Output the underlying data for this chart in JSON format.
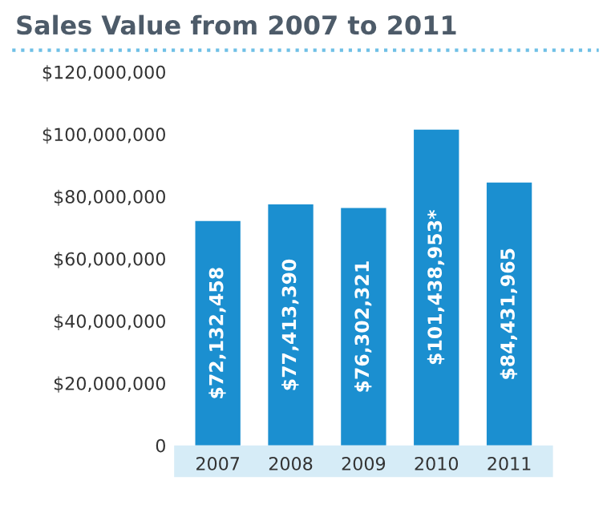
{
  "chart_data": {
    "type": "bar",
    "title": "Sales Value from 2007 to 2011",
    "categories": [
      "2007",
      "2008",
      "2009",
      "2010",
      "2011"
    ],
    "values": [
      72132458,
      77413390,
      76302321,
      101438953,
      84431965
    ],
    "value_labels": [
      "$72,132,458",
      "$77,413,390",
      "$76,302,321",
      "$101,438,953*",
      "$84,431,965"
    ],
    "color": "#1b8fd0",
    "ylim": [
      0,
      120000000
    ],
    "yticks": [
      {
        "value": 0,
        "label": "0"
      },
      {
        "value": 20000000,
        "label": "$20,000,000"
      },
      {
        "value": 40000000,
        "label": "$40,000,000"
      },
      {
        "value": 60000000,
        "label": "$60,000,000"
      },
      {
        "value": 80000000,
        "label": "$80,000,000"
      },
      {
        "value": 100000000,
        "label": "$100,000,000"
      },
      {
        "value": 120000000,
        "label": "$120,000,000"
      }
    ],
    "grid": false
  }
}
